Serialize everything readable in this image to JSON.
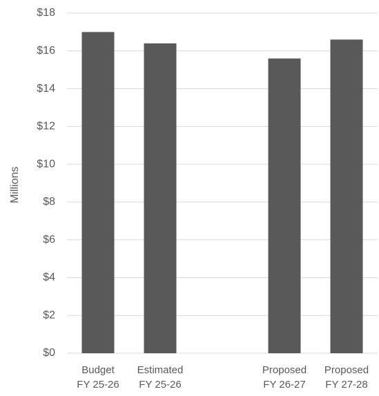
{
  "chart_data": {
    "type": "bar",
    "title": "",
    "xlabel": "",
    "ylabel": "Millions",
    "ylim": [
      0,
      18
    ],
    "yticks": [
      "$0",
      "$2",
      "$4",
      "$6",
      "$8",
      "$10",
      "$12",
      "$14",
      "$16",
      "$18"
    ],
    "grid": true,
    "legend": "none",
    "bar_color": "#595959",
    "gridline_color": "#d9d9d9",
    "categories": [
      {
        "line1": "Budget",
        "line2": "FY 25-26"
      },
      {
        "line1": "Estimated",
        "line2": "FY 25-26"
      },
      {
        "line1": "",
        "line2": ""
      },
      {
        "line1": "Proposed",
        "line2": "FY 26-27"
      },
      {
        "line1": "Proposed",
        "line2": "FY 27-28"
      }
    ],
    "values": [
      17.0,
      16.4,
      null,
      15.6,
      16.6
    ]
  }
}
